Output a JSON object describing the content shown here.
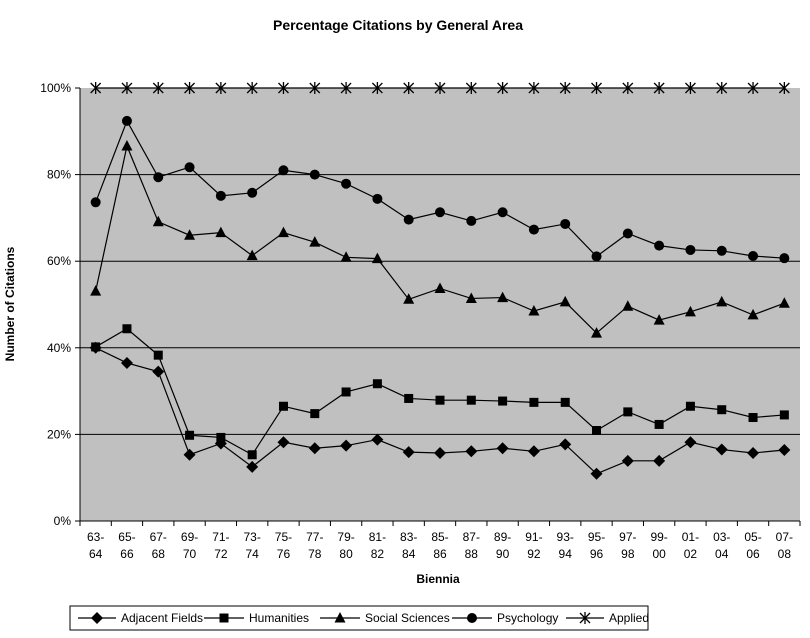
{
  "chart_data": {
    "type": "line",
    "title": "Percentage Citations by General Area",
    "xlabel": "Biennia",
    "ylabel": "Number of Citations",
    "categories": [
      [
        "63-",
        "64"
      ],
      [
        "65-",
        "66"
      ],
      [
        "67-",
        "68"
      ],
      [
        "69-",
        "70"
      ],
      [
        "71-",
        "72"
      ],
      [
        "73-",
        "74"
      ],
      [
        "75-",
        "76"
      ],
      [
        "77-",
        "78"
      ],
      [
        "79-",
        "80"
      ],
      [
        "81-",
        "82"
      ],
      [
        "83-",
        "84"
      ],
      [
        "85-",
        "86"
      ],
      [
        "87-",
        "88"
      ],
      [
        "89-",
        "90"
      ],
      [
        "91-",
        "92"
      ],
      [
        "93-",
        "94"
      ],
      [
        "95-",
        "96"
      ],
      [
        "97-",
        "98"
      ],
      [
        "99-",
        "00"
      ],
      [
        "01-",
        "02"
      ],
      [
        "03-",
        "04"
      ],
      [
        "05-",
        "06"
      ],
      [
        "07-",
        "08"
      ]
    ],
    "ylim": [
      0,
      100
    ],
    "yticks": [
      0,
      20,
      40,
      60,
      80,
      100
    ],
    "ytick_labels": [
      "0%",
      "20%",
      "40%",
      "60%",
      "80%",
      "100%"
    ],
    "grid": true,
    "legend_position": "bottom",
    "plot_background": "#c0c0c0",
    "series": [
      {
        "name": "Adjacent Fields",
        "marker": "diamond",
        "values": [
          40,
          36.5,
          34.5,
          15.3,
          17.9,
          12.5,
          18.2,
          16.8,
          17.4,
          18.8,
          15.9,
          15.7,
          16.1,
          16.8,
          16.1,
          17.7,
          10.9,
          13.9,
          13.9,
          18.2,
          16.5,
          15.7,
          16.4
        ]
      },
      {
        "name": "Humanities",
        "marker": "square",
        "values": [
          40.2,
          44.4,
          38.3,
          19.8,
          19.3,
          15.3,
          26.5,
          24.8,
          29.8,
          31.7,
          28.3,
          27.9,
          27.9,
          27.7,
          27.4,
          27.4,
          20.9,
          25.2,
          22.3,
          26.5,
          25.7,
          23.9,
          24.5
        ]
      },
      {
        "name": "Social Sciences",
        "marker": "triangle",
        "values": [
          53.1,
          86.6,
          69.1,
          66,
          66.6,
          61.3,
          66.6,
          64.4,
          60.9,
          60.6,
          51.2,
          53.7,
          51.4,
          51.6,
          48.5,
          50.6,
          43.4,
          49.6,
          46.4,
          48.3,
          50.6,
          47.6,
          50.3
        ]
      },
      {
        "name": "Psychology",
        "marker": "circle",
        "values": [
          73.6,
          92.4,
          79.4,
          81.7,
          75.1,
          75.8,
          81,
          80,
          77.9,
          74.4,
          69.6,
          71.3,
          69.3,
          71.3,
          67.3,
          68.6,
          61.1,
          66.4,
          63.6,
          62.6,
          62.4,
          61.2,
          60.7
        ]
      },
      {
        "name": "Applied",
        "marker": "asterisk",
        "values": [
          100,
          100,
          100,
          100,
          100,
          100,
          100,
          100,
          100,
          100,
          100,
          100,
          100,
          100,
          100,
          100,
          100,
          100,
          100,
          100,
          100,
          100,
          100
        ]
      }
    ]
  }
}
